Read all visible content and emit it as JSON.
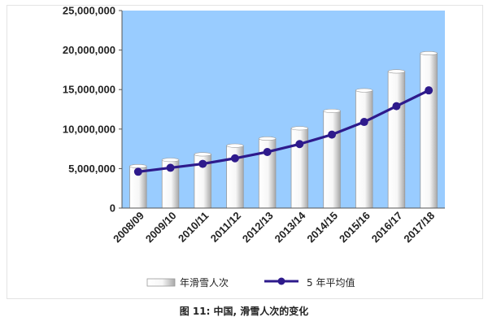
{
  "caption": "图 11: 中国, 滑雪人次的变化",
  "chart_data": {
    "type": "bar",
    "categories": [
      "2008/09",
      "2009/10",
      "2010/11",
      "2011/12",
      "2012/13",
      "2013/14",
      "2014/15",
      "2015/16",
      "2016/17",
      "2017/18"
    ],
    "series": [
      {
        "name": "年滑雪人次",
        "type": "bar",
        "values": [
          5300000,
          6100000,
          6800000,
          7900000,
          8800000,
          10100000,
          12300000,
          14900000,
          17300000,
          19600000
        ]
      },
      {
        "name": "5 年平均值",
        "type": "line",
        "values": [
          4600000,
          5100000,
          5600000,
          6300000,
          7100000,
          8100000,
          9300000,
          10900000,
          12900000,
          14900000
        ]
      }
    ],
    "y_ticks": [
      "0",
      "5,000,000",
      "10,000,000",
      "15,000,000",
      "20,000,000",
      "25,000,000"
    ],
    "ylim": [
      0,
      25000000
    ],
    "legend_position": "bottom",
    "colors": {
      "plot_background": "#99ccff",
      "bar_fill": "#ffffff",
      "line": "#2e1a8c",
      "marker": "#2e1a8c"
    }
  }
}
